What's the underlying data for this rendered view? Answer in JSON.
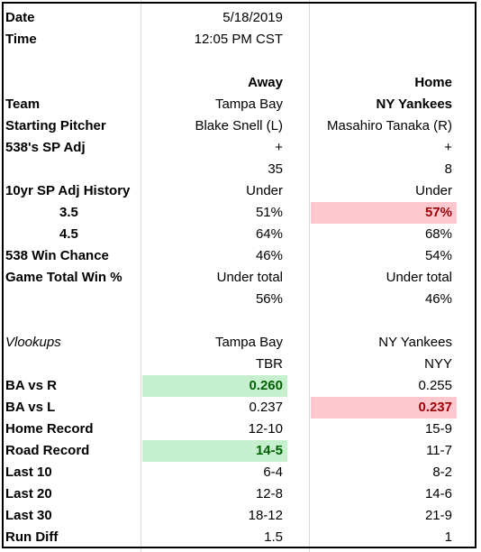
{
  "colors": {
    "green_fill": "#c6efce",
    "green_text": "#006100",
    "red_fill": "#ffc7ce",
    "red_text": "#9c0006"
  },
  "rows": [
    {
      "label": "Date",
      "away": "5/18/2019",
      "home": ""
    },
    {
      "label": "Time",
      "away": "12:05 PM CST",
      "home": ""
    },
    {
      "label": "",
      "away": "",
      "home": ""
    },
    {
      "label": "",
      "away": "Away",
      "home": "Home"
    },
    {
      "label": "Team",
      "away": "Tampa Bay",
      "home": "NY Yankees"
    },
    {
      "label": "Starting Pitcher",
      "away": "Blake Snell (L)",
      "home": "Masahiro Tanaka (R)"
    },
    {
      "label": "538's SP Adj",
      "away": "+",
      "home": "+"
    },
    {
      "label": "",
      "away": "35",
      "home": "8"
    },
    {
      "label": "10yr SP Adj History",
      "away": "Under",
      "home": "Under"
    },
    {
      "label": "3.5",
      "away": "51%",
      "home": "57%"
    },
    {
      "label": "4.5",
      "away": "64%",
      "home": "68%"
    },
    {
      "label": "538 Win Chance",
      "away": "46%",
      "home": "54%"
    },
    {
      "label": "Game Total Win %",
      "away": "Under total",
      "home": "Under total"
    },
    {
      "label": "",
      "away": "56%",
      "home": "46%"
    },
    {
      "label": "",
      "away": "",
      "home": ""
    },
    {
      "label": "Vlookups",
      "away": "Tampa Bay",
      "home": "NY Yankees"
    },
    {
      "label": "",
      "away": "TBR",
      "home": "NYY"
    },
    {
      "label": "BA vs R",
      "away": "0.260",
      "home": "0.255"
    },
    {
      "label": "BA vs L",
      "away": "0.237",
      "home": "0.237"
    },
    {
      "label": "Home Record",
      "away": "12-10",
      "home": "15-9"
    },
    {
      "label": "Road Record",
      "away": "14-5",
      "home": "11-7"
    },
    {
      "label": "Last 10",
      "away": "6-4",
      "home": "8-2"
    },
    {
      "label": "Last 20",
      "away": "12-8",
      "home": "14-6"
    },
    {
      "label": "Last 30",
      "away": "18-12",
      "home": "21-9"
    },
    {
      "label": "Run Diff",
      "away": "1.5",
      "home": "1"
    }
  ]
}
